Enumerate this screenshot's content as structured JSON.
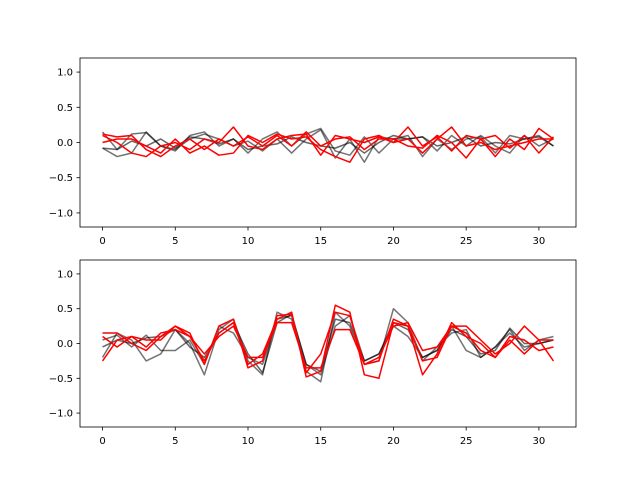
{
  "chart_data": [
    {
      "type": "line",
      "title": "",
      "xlabel": "",
      "ylabel": "",
      "xlim": [
        -1.55,
        32.55
      ],
      "ylim": [
        -1.2,
        1.2
      ],
      "xticks": [
        0,
        5,
        10,
        15,
        20,
        25,
        30
      ],
      "yticks": [
        -1.0,
        -0.5,
        0.0,
        0.5,
        1.0
      ],
      "ytick_labels": [
        "−1.0",
        "−0.5",
        "0.0",
        "0.5",
        "1.0"
      ],
      "grid": false,
      "colors": {
        "black": "#000000",
        "gray": "#808080",
        "red": "#ff0000"
      },
      "series": [
        {
          "color": "gray",
          "alpha": 1.0,
          "values": [
            0.15,
            -0.1,
            0.12,
            0.14,
            -0.05,
            -0.1,
            0.05,
            0.12,
            0.05,
            -0.05,
            0.02,
            -0.12,
            0.05,
            -0.15,
            0.05,
            0.18,
            -0.22,
            0.05,
            -0.28,
            0.08,
            0.05,
            0.1,
            -0.2,
            0.05,
            -0.1,
            0.05,
            0.08,
            -0.15,
            0.1,
            0.05,
            0.1,
            -0.05
          ]
        },
        {
          "color": "gray",
          "alpha": 1.0,
          "values": [
            -0.08,
            -0.2,
            -0.15,
            0.15,
            -0.05,
            -0.12,
            0.1,
            0.15,
            -0.05,
            0.05,
            -0.15,
            0.05,
            0.15,
            -0.05,
            0.12,
            0.2,
            -0.12,
            -0.18,
            0.08,
            -0.15,
            0.05,
            0.05,
            0.08,
            -0.12,
            0.1,
            -0.05,
            0.1,
            -0.05,
            -0.15,
            0.1,
            -0.05,
            0.05
          ]
        },
        {
          "color": "black",
          "alpha": 1.0,
          "values": [
            -0.08,
            -0.1,
            0.02,
            -0.05,
            0.05,
            -0.08,
            0.08,
            0.05,
            -0.02,
            0.05,
            -0.1,
            -0.05,
            -0.02,
            0.08,
            0.0,
            -0.05,
            -0.08,
            0.0,
            -0.15,
            0.0,
            0.1,
            0.05,
            0.08,
            -0.05,
            0.0,
            0.08,
            -0.05,
            0.0,
            -0.02,
            0.05,
            0.08,
            -0.05
          ]
        },
        {
          "color": "red",
          "alpha": 1.0,
          "values": [
            0.1,
            0.0,
            -0.15,
            -0.2,
            -0.05,
            0.0,
            -0.1,
            0.05,
            0.0,
            0.22,
            -0.05,
            -0.1,
            0.05,
            0.1,
            0.12,
            -0.18,
            0.1,
            0.05,
            0.0,
            0.08,
            0.0,
            0.22,
            -0.05,
            0.08,
            -0.12,
            0.1,
            0.05,
            -0.2,
            0.05,
            -0.1,
            0.2,
            0.05
          ]
        },
        {
          "color": "red",
          "alpha": 1.0,
          "values": [
            0.0,
            0.05,
            0.05,
            -0.05,
            -0.15,
            0.05,
            -0.15,
            -0.05,
            -0.18,
            -0.15,
            0.1,
            0.0,
            0.12,
            0.05,
            0.08,
            -0.1,
            -0.2,
            -0.28,
            0.05,
            0.1,
            0.0,
            0.05,
            -0.15,
            0.05,
            0.22,
            -0.05,
            0.0,
            -0.1,
            -0.05,
            0.0,
            0.05,
            0.05
          ]
        },
        {
          "color": "red",
          "alpha": 1.0,
          "values": [
            0.12,
            0.08,
            0.1,
            -0.1,
            -0.2,
            -0.05,
            0.05,
            -0.1,
            0.05,
            -0.05,
            0.08,
            -0.05,
            0.1,
            -0.05,
            0.15,
            -0.05,
            0.05,
            0.08,
            -0.1,
            0.05,
            0.05,
            -0.05,
            -0.08,
            0.1,
            0.0,
            -0.22,
            0.05,
            0.1,
            -0.08,
            0.1,
            -0.15,
            0.08
          ]
        }
      ]
    },
    {
      "type": "line",
      "title": "",
      "xlabel": "",
      "ylabel": "",
      "xlim": [
        -1.55,
        32.55
      ],
      "ylim": [
        -1.2,
        1.2
      ],
      "xticks": [
        0,
        5,
        10,
        15,
        20,
        25,
        30
      ],
      "yticks": [
        -1.0,
        -0.5,
        0.0,
        0.5,
        1.0
      ],
      "ytick_labels": [
        "−1.0",
        "−0.5",
        "0.0",
        "0.5",
        "1.0"
      ],
      "grid": false,
      "colors": {
        "black": "#000000",
        "gray": "#808080",
        "red": "#ff0000"
      },
      "series": [
        {
          "color": "gray",
          "alpha": 1.0,
          "values": [
            -0.2,
            0.15,
            0.05,
            -0.25,
            -0.15,
            0.2,
            0.0,
            -0.45,
            0.2,
            0.35,
            -0.25,
            -0.45,
            0.45,
            0.35,
            -0.4,
            -0.55,
            0.45,
            0.25,
            -0.3,
            -0.25,
            0.5,
            0.3,
            -0.25,
            -0.05,
            0.15,
            0.2,
            -0.2,
            -0.05,
            0.2,
            -0.1,
            0.05,
            0.1
          ]
        },
        {
          "color": "gray",
          "alpha": 1.0,
          "values": [
            0.05,
            0.12,
            -0.05,
            0.12,
            -0.1,
            -0.1,
            0.05,
            -0.3,
            0.25,
            0.15,
            -0.2,
            -0.3,
            0.35,
            0.4,
            -0.3,
            -0.45,
            0.25,
            0.4,
            -0.25,
            -0.15,
            0.25,
            0.1,
            -0.2,
            -0.1,
            0.25,
            -0.1,
            -0.2,
            -0.05,
            0.15,
            -0.05,
            0.0,
            0.05
          ]
        },
        {
          "color": "black",
          "alpha": 1.0,
          "values": [
            -0.05,
            0.05,
            0.0,
            0.08,
            0.1,
            0.2,
            -0.05,
            -0.2,
            0.15,
            0.3,
            -0.15,
            -0.42,
            0.3,
            0.42,
            -0.3,
            -0.4,
            0.35,
            0.3,
            -0.25,
            -0.15,
            0.3,
            0.2,
            -0.2,
            -0.1,
            0.2,
            0.1,
            -0.15,
            -0.1,
            0.22,
            0.0,
            0.0,
            0.05
          ]
        },
        {
          "color": "red",
          "alpha": 1.0,
          "values": [
            0.15,
            0.15,
            0.0,
            -0.1,
            0.1,
            0.25,
            0.1,
            -0.25,
            0.15,
            0.3,
            -0.3,
            -0.15,
            0.35,
            0.45,
            -0.48,
            -0.4,
            0.55,
            0.45,
            -0.45,
            -0.5,
            0.3,
            0.25,
            -0.45,
            -0.15,
            0.3,
            0.1,
            0.0,
            -0.2,
            0.05,
            -0.15,
            0.05,
            -0.25
          ]
        },
        {
          "color": "red",
          "alpha": 1.0,
          "values": [
            -0.25,
            0.05,
            0.1,
            0.05,
            0.05,
            0.25,
            0.15,
            -0.3,
            0.25,
            0.35,
            -0.35,
            -0.25,
            0.4,
            0.42,
            -0.42,
            -0.15,
            0.45,
            0.4,
            -0.3,
            -0.2,
            0.25,
            0.3,
            -0.1,
            -0.05,
            0.25,
            0.25,
            0.05,
            -0.15,
            0.0,
            0.25,
            0.05,
            0.05
          ]
        },
        {
          "color": "red",
          "alpha": 1.0,
          "values": [
            0.1,
            -0.05,
            0.1,
            -0.05,
            0.15,
            0.2,
            0.1,
            -0.15,
            0.1,
            0.25,
            -0.2,
            -0.2,
            0.3,
            0.3,
            -0.35,
            -0.35,
            0.2,
            0.2,
            -0.3,
            -0.25,
            0.35,
            0.25,
            -0.25,
            -0.2,
            0.25,
            0.15,
            -0.1,
            -0.2,
            0.1,
            0.05,
            -0.1,
            -0.05
          ]
        }
      ]
    }
  ]
}
